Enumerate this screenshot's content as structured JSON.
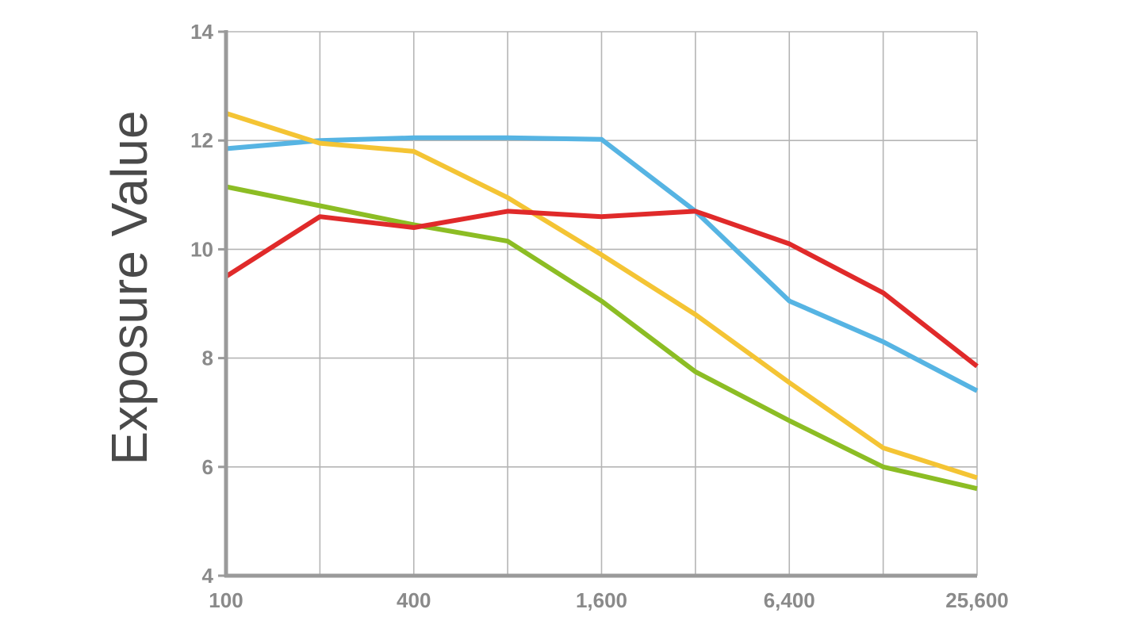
{
  "chart_data": {
    "type": "line",
    "title": "",
    "xlabel": "",
    "ylabel": "Exposure Value",
    "x_scale": "log2",
    "x": [
      100,
      200,
      400,
      800,
      1600,
      3200,
      6400,
      12800,
      25600
    ],
    "x_tick_labels": [
      "100",
      "400",
      "1,600",
      "6,400",
      "25,600"
    ],
    "x_tick_values": [
      100,
      400,
      1600,
      6400,
      25600
    ],
    "ylim": [
      4,
      14
    ],
    "y_ticks": [
      4,
      6,
      8,
      10,
      12,
      14
    ],
    "y_tick_labels": [
      "4",
      "6",
      "8",
      "10",
      "12",
      "14"
    ],
    "grid": true,
    "series": [
      {
        "color": "#56b4e3",
        "values": [
          11.85,
          12.0,
          12.05,
          12.05,
          12.02,
          10.7,
          9.05,
          8.3,
          7.4
        ]
      },
      {
        "color": "#f4c434",
        "values": [
          12.5,
          11.95,
          11.8,
          10.95,
          9.9,
          8.8,
          7.55,
          6.35,
          5.8
        ]
      },
      {
        "color": "#8cbd24",
        "values": [
          11.15,
          10.8,
          10.45,
          10.15,
          9.05,
          7.75,
          6.85,
          6.0,
          5.6
        ]
      },
      {
        "color": "#e02a2a",
        "values": [
          9.5,
          10.6,
          10.4,
          10.7,
          10.6,
          10.7,
          10.1,
          9.2,
          7.85
        ]
      }
    ]
  }
}
